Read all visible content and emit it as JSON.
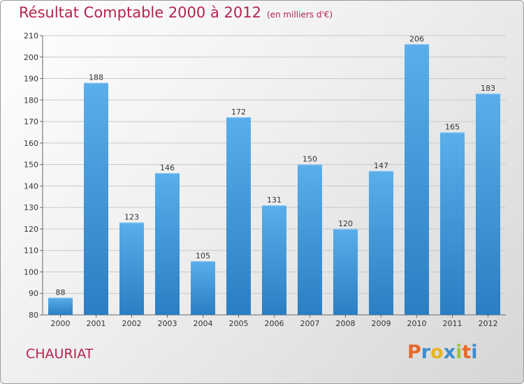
{
  "header": {
    "title": "Résultat Comptable 2000 à 2012",
    "subtitle": "(en milliers d'€)"
  },
  "footer": {
    "commune": "CHAURIAT",
    "brand": "Proxiti",
    "brand_colors": [
      "#e8692a",
      "#3a8dd0",
      "#e8b320",
      "#3a8dd0",
      "#9bc43a",
      "#e8692a",
      "#3a8dd0"
    ]
  },
  "colors": {
    "accent": "#b5244d",
    "bar_top": "#5aaeea",
    "bar_bottom": "#2b7ec2"
  },
  "chart_data": {
    "type": "bar",
    "title": "Résultat Comptable 2000 à 2012",
    "xlabel": "",
    "ylabel": "",
    "categories": [
      "2000",
      "2001",
      "2002",
      "2003",
      "2004",
      "2005",
      "2006",
      "2007",
      "2008",
      "2009",
      "2010",
      "2011",
      "2012"
    ],
    "values": [
      88,
      188,
      123,
      146,
      105,
      172,
      131,
      150,
      120,
      147,
      206,
      165,
      183
    ],
    "ylim": [
      80,
      210
    ],
    "yticks": [
      80,
      90,
      100,
      110,
      120,
      130,
      140,
      150,
      160,
      170,
      180,
      190,
      200,
      210
    ],
    "grid": true,
    "data_labels": true
  }
}
